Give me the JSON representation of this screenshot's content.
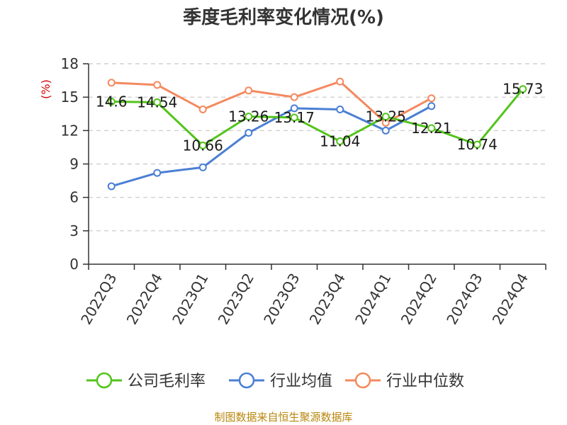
{
  "chart_data": {
    "type": "line",
    "title": "季度毛利率变化情况(%)",
    "ylabel": "(%)",
    "xlabel": "",
    "ylim": [
      0,
      18
    ],
    "yticks": [
      0,
      3,
      6,
      9,
      12,
      15,
      18
    ],
    "grid": true,
    "legend_position": "bottom",
    "categories": [
      "2022Q3",
      "2022Q4",
      "2023Q1",
      "2023Q2",
      "2023Q3",
      "2023Q4",
      "2024Q1",
      "2024Q2",
      "2024Q3",
      "2024Q4"
    ],
    "series": [
      {
        "name": "公司毛利率",
        "color": "#52c41a",
        "show_labels": true,
        "values": [
          14.6,
          14.54,
          10.66,
          13.26,
          13.17,
          11.04,
          13.25,
          12.21,
          10.74,
          15.73
        ]
      },
      {
        "name": "行业均值",
        "color": "#4a7fd4",
        "show_labels": false,
        "values": [
          7.0,
          8.2,
          8.7,
          11.8,
          14.0,
          13.9,
          12.0,
          14.2,
          null,
          null
        ]
      },
      {
        "name": "行业中位数",
        "color": "#f4895f",
        "show_labels": false,
        "values": [
          16.3,
          16.1,
          13.9,
          15.6,
          15.0,
          16.4,
          12.7,
          14.9,
          null,
          null
        ]
      }
    ]
  },
  "footer": {
    "source": "制图数据来自恒生聚源数据库"
  }
}
